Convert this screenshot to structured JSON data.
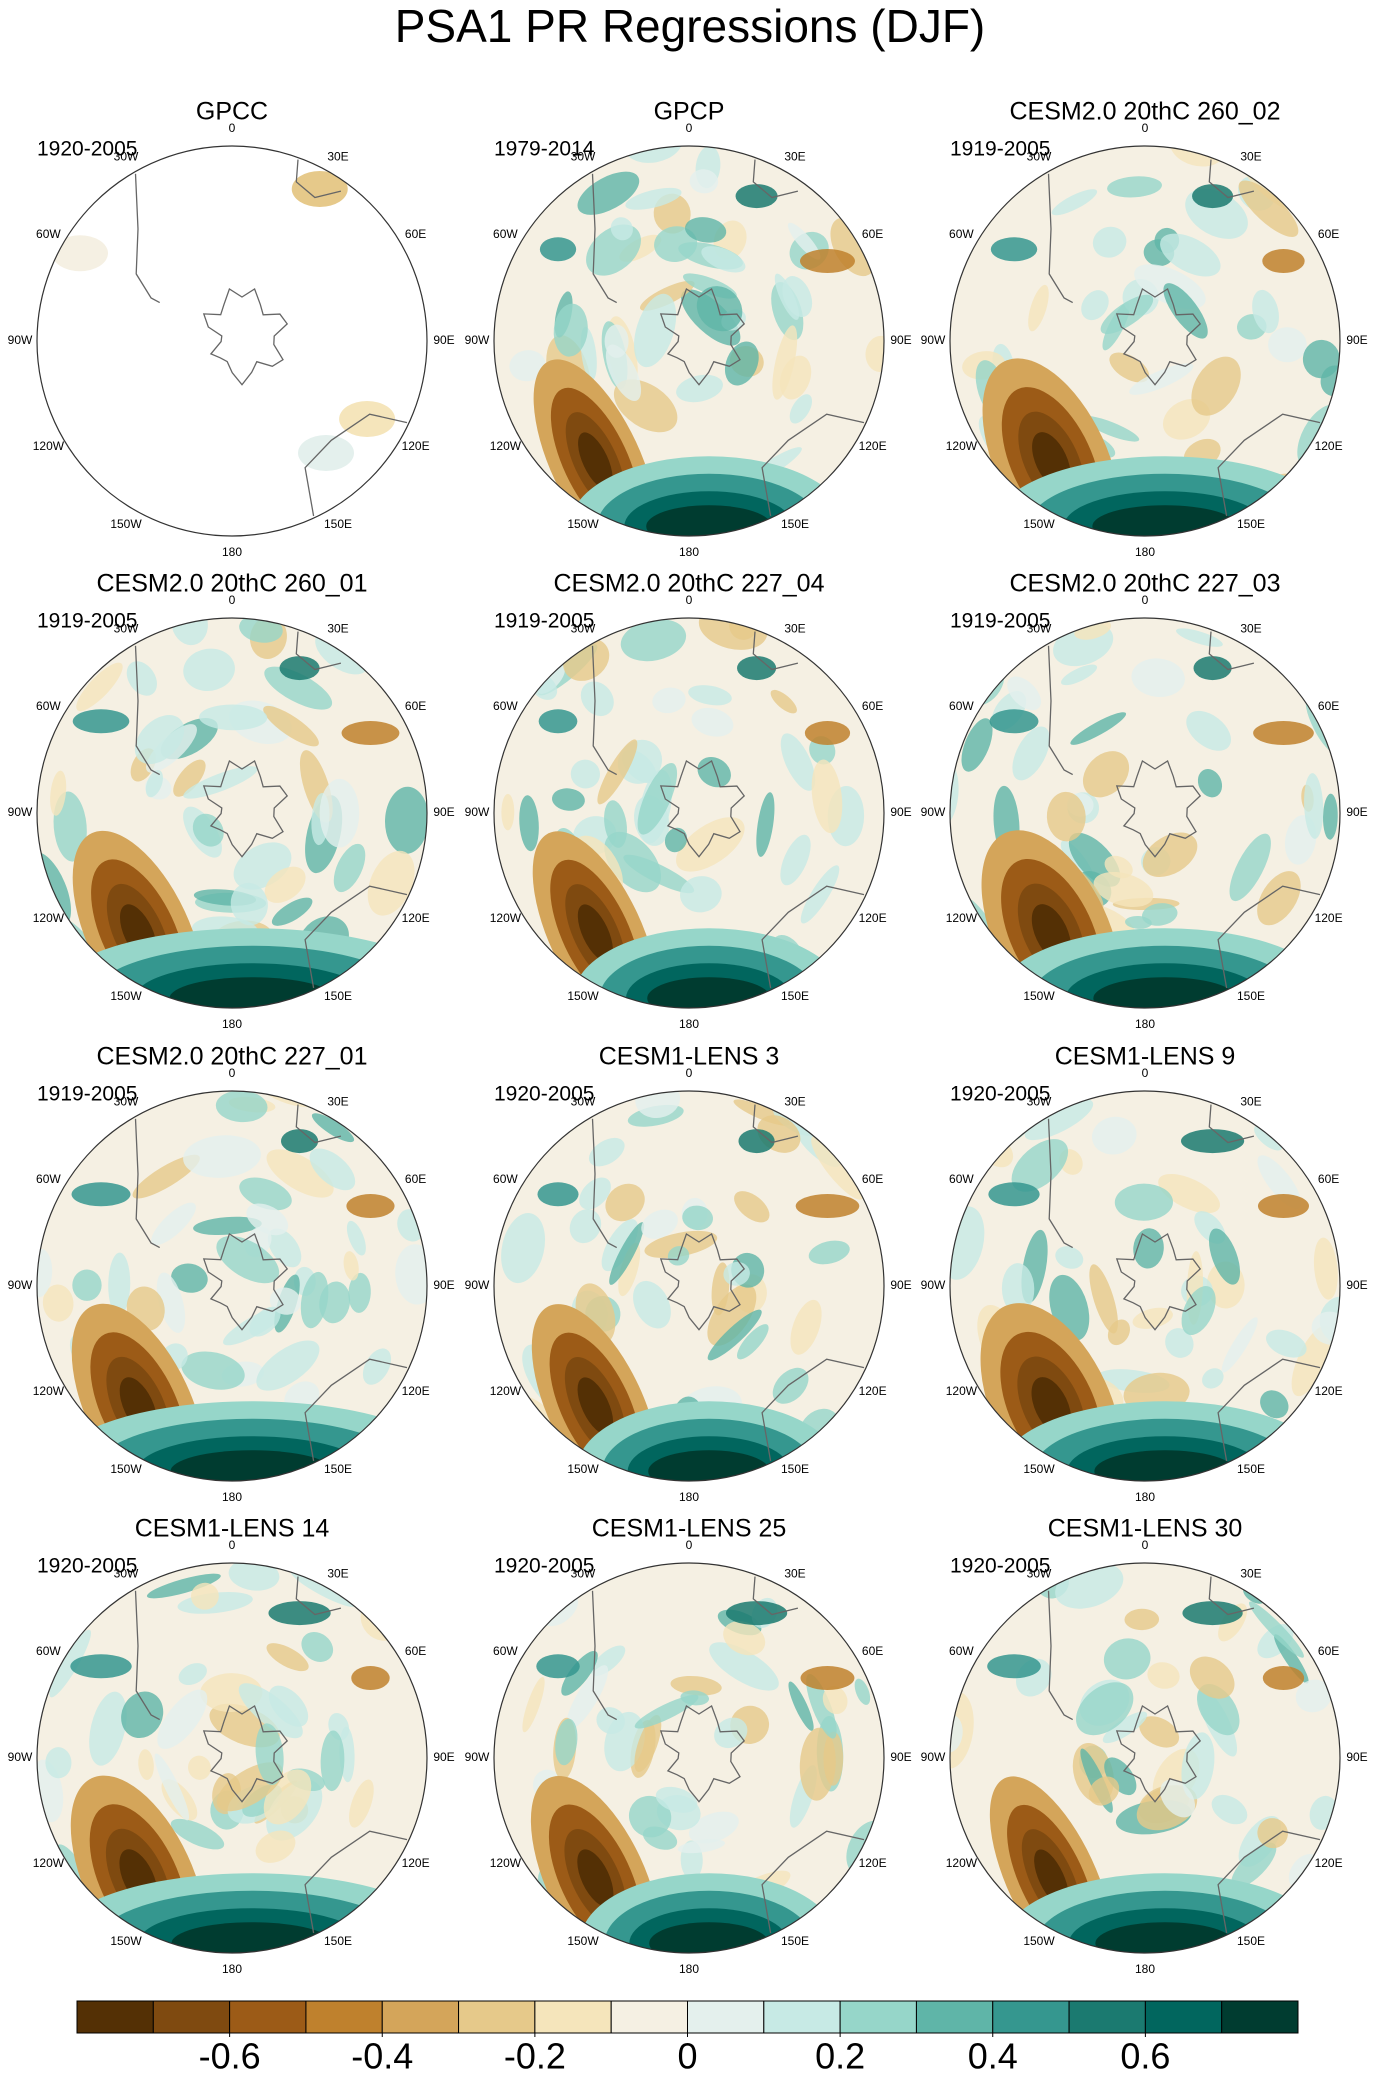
{
  "title": "PSA1 PR Regressions (DJF)",
  "panels": [
    {
      "title": "GPCC",
      "period": "1920-2005"
    },
    {
      "title": "GPCP",
      "period": "1979-2014"
    },
    {
      "title": "CESM2.0 20thC 260_02",
      "period": "1919-2005"
    },
    {
      "title": "CESM2.0 20thC 260_01",
      "period": "1919-2005"
    },
    {
      "title": "CESM2.0 20thC 227_04",
      "period": "1919-2005"
    },
    {
      "title": "CESM2.0 20thC 227_03",
      "period": "1919-2005"
    },
    {
      "title": "CESM2.0 20thC 227_01",
      "period": "1919-2005"
    },
    {
      "title": "CESM1-LENS 3",
      "period": "1920-2005"
    },
    {
      "title": "CESM1-LENS 9",
      "period": "1920-2005"
    },
    {
      "title": "CESM1-LENS 14",
      "period": "1920-2005"
    },
    {
      "title": "CESM1-LENS 25",
      "period": "1920-2005"
    },
    {
      "title": "CESM1-LENS 30",
      "period": "1920-2005"
    }
  ],
  "lon_labels": [
    "0",
    "30E",
    "60E",
    "90E",
    "120E",
    "150E",
    "180",
    "150W",
    "120W",
    "90W",
    "60W",
    "30W"
  ],
  "colorbar": {
    "lim": [
      -0.8,
      0.8
    ],
    "levels": [
      -0.7,
      -0.6,
      -0.5,
      -0.4,
      -0.3,
      -0.2,
      -0.1,
      0,
      0.1,
      0.2,
      0.3,
      0.4,
      0.5,
      0.6,
      0.7
    ],
    "ticks": [
      -0.6,
      -0.4,
      -0.2,
      0,
      0.2,
      0.4,
      0.6
    ],
    "colors": [
      "#543005",
      "#7f4a10",
      "#9c5b17",
      "#bf812d",
      "#d4a55a",
      "#e6c98a",
      "#f5e5bb",
      "#f5f0e3",
      "#e4f0ed",
      "#c7eae5",
      "#96d6c9",
      "#5fb5a8",
      "#35978f",
      "#1b7a70",
      "#01665e",
      "#003c30"
    ]
  }
}
